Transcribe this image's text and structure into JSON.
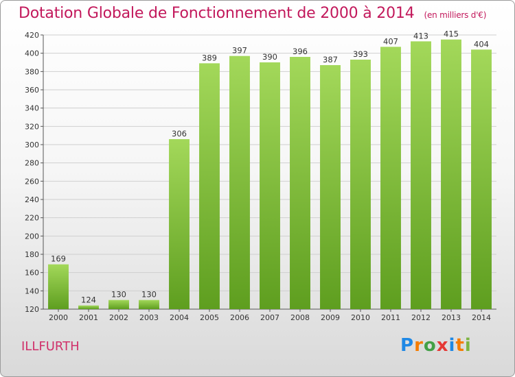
{
  "header": {
    "title": "Dotation Globale de Fonctionnement de 2000 à 2014",
    "unit": "(en milliers d'€)"
  },
  "commune": "ILLFURTH",
  "logo": {
    "letters": [
      "P",
      "r",
      "o",
      "x",
      "i",
      "t",
      "i"
    ],
    "colors": [
      "#1e88e5",
      "#f57c00",
      "#43a047",
      "#e53935",
      "#1e88e5",
      "#f57c00",
      "#7cb342"
    ]
  },
  "chart_data": {
    "type": "bar",
    "title": "Dotation Globale de Fonctionnement de 2000 à 2014",
    "subtitle": "(en milliers d'€)",
    "categories": [
      "2000",
      "2001",
      "2002",
      "2003",
      "2004",
      "2005",
      "2006",
      "2007",
      "2008",
      "2009",
      "2010",
      "2011",
      "2012",
      "2013",
      "2014"
    ],
    "values": [
      169,
      124,
      130,
      130,
      306,
      389,
      397,
      390,
      396,
      387,
      393,
      407,
      413,
      415,
      404
    ],
    "ylim": [
      120,
      420
    ],
    "yticks": [
      120,
      140,
      160,
      180,
      200,
      220,
      240,
      260,
      280,
      300,
      320,
      340,
      360,
      380,
      400,
      420
    ],
    "grid": true,
    "bar_color": "#7cc23a",
    "bar_color_light": "#a3d85a",
    "bar_color_dark": "#5e9e1f"
  }
}
